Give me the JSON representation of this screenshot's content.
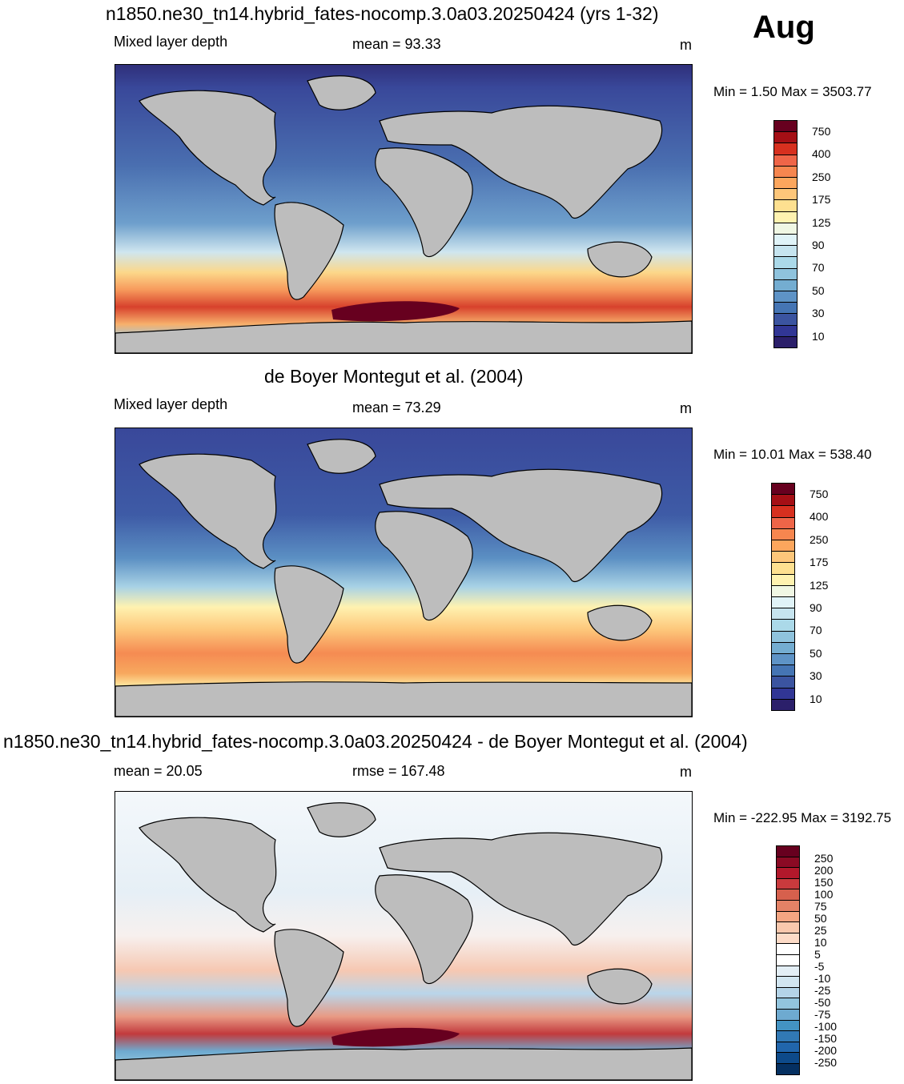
{
  "month": "Aug",
  "panels": [
    {
      "title": "n1850.ne30_tn14.hybrid_fates-nocomp.3.0a03.20250424 (yrs 1-32)",
      "left_label": "Mixed layer depth",
      "center_label": "mean =  93.33",
      "units": "m",
      "minmax": "Min =   1.50 Max = 3503.77"
    },
    {
      "title": "de Boyer Montegut et al. (2004)",
      "left_label": "Mixed layer depth",
      "center_label": "mean =  73.29",
      "units": "m",
      "minmax": "Min =  10.01 Max = 538.40"
    },
    {
      "title": "n1850.ne30_tn14.hybrid_fates-nocomp.3.0a03.20250424 - de Boyer Montegut et al. (2004)",
      "left_label": "mean =  20.05",
      "center_label": "rmse = 167.48",
      "units": "m",
      "minmax": "Min = -222.95 Max = 3192.75"
    }
  ],
  "colorbar_main": {
    "labels": [
      "750",
      "400",
      "250",
      "175",
      "125",
      "90",
      "70",
      "50",
      "30",
      "10"
    ],
    "colors": [
      "#67001f",
      "#a50f15",
      "#d7301f",
      "#ef6548",
      "#f6864f",
      "#fca65d",
      "#fdc67a",
      "#fee090",
      "#fff2b0",
      "#f0f7e4",
      "#e0f3f8",
      "#c6e4ef",
      "#abd9e9",
      "#8fc3dd",
      "#74add1",
      "#5e93c6",
      "#4575b4",
      "#3b54a0",
      "#313695",
      "#2b1f6a"
    ]
  },
  "colorbar_diff": {
    "labels": [
      "250",
      "200",
      "150",
      "100",
      "75",
      "50",
      "25",
      "10",
      "5",
      "-5",
      "-10",
      "-25",
      "-50",
      "-75",
      "-100",
      "-150",
      "-200",
      "-250"
    ],
    "colors": [
      "#67001f",
      "#8b0a24",
      "#b2182b",
      "#c93a3d",
      "#d6604d",
      "#e48266",
      "#f4a582",
      "#f9c8ad",
      "#fddbc7",
      "#ffffff",
      "#ffffff",
      "#e3eef5",
      "#d1e5f0",
      "#b4d4e8",
      "#92c5de",
      "#6eaad0",
      "#4393c3",
      "#3179b5",
      "#2166ac",
      "#0d4a8a",
      "#053061"
    ]
  },
  "icons": [
    "world-map-land"
  ]
}
